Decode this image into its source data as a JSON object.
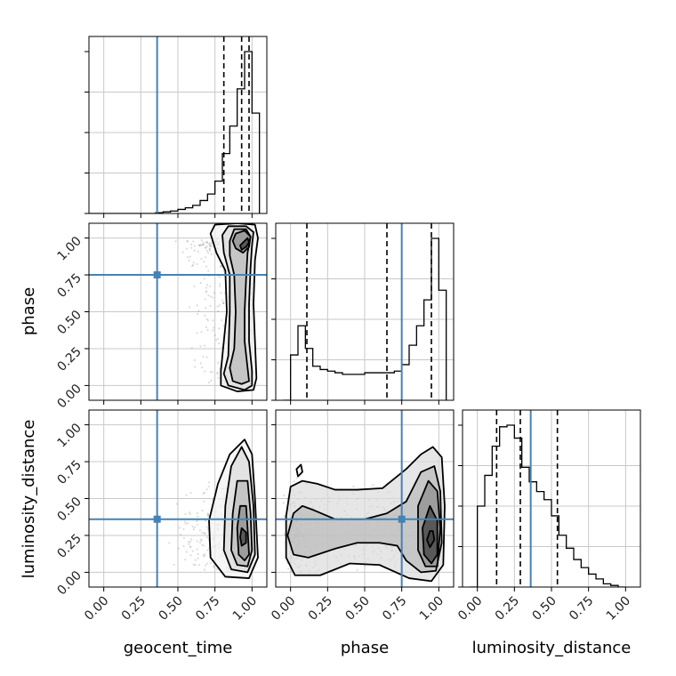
{
  "chart_data": {
    "type": "corner",
    "parameters": [
      "geocent_time",
      "phase",
      "luminosity_distance"
    ],
    "axis_range": [
      -0.1,
      1.1
    ],
    "tick_labels": [
      "0.00",
      "0.25",
      "0.50",
      "0.75",
      "1.00"
    ],
    "tick_values": [
      0,
      0.25,
      0.5,
      0.75,
      1.0
    ],
    "grid": true,
    "truth_color": "#4682b4",
    "truths": {
      "geocent_time": 0.36,
      "phase": 0.75,
      "luminosity_distance": 0.36
    },
    "histograms": {
      "geocent_time": {
        "bin_edges": [
          -0.1,
          -0.05,
          0.0,
          0.05,
          0.1,
          0.15,
          0.2,
          0.25,
          0.3,
          0.35,
          0.4,
          0.45,
          0.5,
          0.55,
          0.6,
          0.65,
          0.7,
          0.75,
          0.8,
          0.85,
          0.9,
          0.95,
          1.0,
          1.05
        ],
        "counts": [
          0,
          0,
          0,
          0,
          0,
          0,
          0,
          0,
          0,
          0.005,
          0.01,
          0.015,
          0.025,
          0.035,
          0.05,
          0.08,
          0.12,
          0.2,
          0.37,
          0.54,
          0.77,
          1.0,
          0.62
        ],
        "quantiles": [
          0.81,
          0.93,
          0.98
        ]
      },
      "phase": {
        "bin_edges": [
          -0.05,
          0.0,
          0.05,
          0.1,
          0.15,
          0.2,
          0.25,
          0.3,
          0.35,
          0.4,
          0.45,
          0.5,
          0.55,
          0.6,
          0.65,
          0.7,
          0.75,
          0.8,
          0.85,
          0.9,
          0.95,
          1.0,
          1.05
        ],
        "counts": [
          0,
          0.28,
          0.46,
          0.32,
          0.21,
          0.19,
          0.18,
          0.17,
          0.16,
          0.16,
          0.16,
          0.17,
          0.17,
          0.17,
          0.17,
          0.18,
          0.22,
          0.34,
          0.46,
          0.62,
          1.0,
          0.68
        ],
        "quantiles": [
          0.11,
          0.65,
          0.95
        ]
      },
      "luminosity_distance": {
        "bin_edges": [
          -0.05,
          0.0,
          0.05,
          0.1,
          0.15,
          0.2,
          0.25,
          0.3,
          0.35,
          0.4,
          0.45,
          0.5,
          0.55,
          0.6,
          0.65,
          0.7,
          0.75,
          0.8,
          0.85,
          0.9,
          0.95,
          1.0
        ],
        "counts": [
          0,
          0.5,
          0.69,
          0.87,
          0.99,
          1.0,
          0.92,
          0.74,
          0.65,
          0.59,
          0.54,
          0.44,
          0.32,
          0.24,
          0.17,
          0.12,
          0.08,
          0.05,
          0.02,
          0.01,
          0
        ],
        "quantiles": [
          0.13,
          0.29,
          0.54
        ]
      }
    },
    "scatter_2d": {
      "phase_vs_geocent_time": {
        "x": "geocent_time",
        "y": "phase",
        "contours": [
          [
            [
              0.97,
              1.0
            ],
            [
              0.95,
              0.98
            ],
            [
              0.92,
              0.95
            ],
            [
              0.93,
              0.92
            ],
            [
              0.96,
              0.94
            ],
            [
              0.98,
              0.97
            ]
          ],
          [
            [
              0.89,
              1.03
            ],
            [
              0.87,
              0.98
            ],
            [
              0.89,
              0.93
            ],
            [
              0.94,
              0.9
            ],
            [
              0.98,
              0.94
            ],
            [
              0.99,
              1.01
            ],
            [
              0.95,
              1.05
            ]
          ],
          [
            [
              0.88,
              0.25
            ],
            [
              0.85,
              0.12
            ],
            [
              0.87,
              0.03
            ],
            [
              0.93,
              0.01
            ],
            [
              0.98,
              0.03
            ],
            [
              0.97,
              0.12
            ],
            [
              0.95,
              0.3
            ],
            [
              0.95,
              0.5
            ],
            [
              0.96,
              0.72
            ],
            [
              0.97,
              0.9
            ],
            [
              0.99,
              1.01
            ],
            [
              0.96,
              1.06
            ],
            [
              0.88,
              1.06
            ],
            [
              0.85,
              0.98
            ],
            [
              0.85,
              0.88
            ],
            [
              0.88,
              0.75
            ],
            [
              0.89,
              0.5
            ]
          ],
          [
            [
              0.84,
              0.2
            ],
            [
              0.81,
              0.08
            ],
            [
              0.84,
              0.0
            ],
            [
              0.95,
              -0.03
            ],
            [
              1.0,
              0.0
            ],
            [
              1.0,
              0.1
            ],
            [
              0.98,
              0.3
            ],
            [
              0.98,
              0.55
            ],
            [
              0.99,
              0.8
            ],
            [
              1.0,
              0.95
            ],
            [
              1.01,
              1.04
            ],
            [
              0.96,
              1.08
            ],
            [
              0.84,
              1.08
            ],
            [
              0.8,
              1.02
            ],
            [
              0.81,
              0.9
            ],
            [
              0.85,
              0.75
            ],
            [
              0.85,
              0.5
            ]
          ],
          [
            [
              0.79,
              0.1
            ],
            [
              0.79,
              0.0
            ],
            [
              0.9,
              -0.04
            ],
            [
              1.01,
              -0.03
            ],
            [
              1.03,
              0.05
            ],
            [
              1.02,
              0.3
            ],
            [
              1.01,
              0.55
            ],
            [
              1.02,
              0.85
            ],
            [
              1.04,
              1.0
            ],
            [
              1.02,
              1.09
            ],
            [
              0.9,
              1.1
            ],
            [
              0.75,
              1.09
            ],
            [
              0.72,
              1.03
            ],
            [
              0.76,
              0.9
            ],
            [
              0.82,
              0.78
            ],
            [
              0.83,
              0.5
            ],
            [
              0.81,
              0.3
            ]
          ]
        ]
      },
      "luminosity_distance_vs_geocent_time": {
        "x": "geocent_time",
        "y": "luminosity_distance",
        "contours": [
          [
            [
              0.93,
              0.3
            ],
            [
              0.92,
              0.24
            ],
            [
              0.93,
              0.18
            ],
            [
              0.96,
              0.2
            ],
            [
              0.96,
              0.27
            ]
          ],
          [
            [
              0.92,
              0.45
            ],
            [
              0.9,
              0.3
            ],
            [
              0.91,
              0.12
            ],
            [
              0.95,
              0.08
            ],
            [
              0.98,
              0.12
            ],
            [
              0.97,
              0.3
            ],
            [
              0.96,
              0.45
            ]
          ],
          [
            [
              0.9,
              0.62
            ],
            [
              0.87,
              0.4
            ],
            [
              0.86,
              0.15
            ],
            [
              0.9,
              0.05
            ],
            [
              0.97,
              0.04
            ],
            [
              1.0,
              0.15
            ],
            [
              0.99,
              0.4
            ],
            [
              0.97,
              0.62
            ]
          ],
          [
            [
              0.93,
              0.85
            ],
            [
              0.86,
              0.72
            ],
            [
              0.82,
              0.45
            ],
            [
              0.81,
              0.15
            ],
            [
              0.86,
              0.02
            ],
            [
              0.97,
              0.0
            ],
            [
              1.02,
              0.12
            ],
            [
              1.01,
              0.45
            ],
            [
              0.98,
              0.75
            ]
          ],
          [
            [
              0.95,
              0.9
            ],
            [
              0.85,
              0.8
            ],
            [
              0.77,
              0.6
            ],
            [
              0.71,
              0.35
            ],
            [
              0.72,
              0.1
            ],
            [
              0.82,
              -0.03
            ],
            [
              0.98,
              -0.04
            ],
            [
              1.04,
              0.1
            ],
            [
              1.02,
              0.5
            ],
            [
              1.0,
              0.8
            ]
          ]
        ]
      },
      "luminosity_distance_vs_phase": {
        "x": "phase",
        "y": "luminosity_distance",
        "contours": [
          [
            [
              0.94,
              0.28
            ],
            [
              0.92,
              0.22
            ],
            [
              0.94,
              0.17
            ],
            [
              0.97,
              0.22
            ],
            [
              0.96,
              0.28
            ]
          ],
          [
            [
              0.94,
              0.45
            ],
            [
              0.89,
              0.3
            ],
            [
              0.9,
              0.12
            ],
            [
              0.95,
              0.06
            ],
            [
              0.99,
              0.12
            ],
            [
              0.99,
              0.35
            ]
          ],
          [
            [
              0.93,
              0.62
            ],
            [
              0.86,
              0.45
            ],
            [
              0.86,
              0.15
            ],
            [
              0.91,
              0.04
            ],
            [
              0.99,
              0.04
            ],
            [
              1.01,
              0.3
            ],
            [
              0.99,
              0.55
            ]
          ],
          [
            [
              0.08,
              0.45
            ],
            [
              0.02,
              0.4
            ],
            [
              -0.02,
              0.25
            ],
            [
              0.02,
              0.12
            ],
            [
              0.12,
              0.1
            ],
            [
              0.3,
              0.16
            ],
            [
              0.45,
              0.2
            ],
            [
              0.6,
              0.2
            ],
            [
              0.72,
              0.18
            ],
            [
              0.78,
              0.08
            ],
            [
              0.88,
              0.0
            ],
            [
              0.98,
              0.01
            ],
            [
              1.02,
              0.2
            ],
            [
              1.01,
              0.55
            ],
            [
              0.97,
              0.72
            ],
            [
              0.88,
              0.68
            ],
            [
              0.78,
              0.48
            ],
            [
              0.65,
              0.4
            ],
            [
              0.5,
              0.36
            ],
            [
              0.3,
              0.36
            ],
            [
              0.16,
              0.42
            ]
          ],
          [
            [
              0.08,
              0.62
            ],
            [
              0.0,
              0.58
            ],
            [
              -0.03,
              0.38
            ],
            [
              -0.03,
              0.1
            ],
            [
              0.03,
              -0.02
            ],
            [
              0.2,
              -0.02
            ],
            [
              0.4,
              0.06
            ],
            [
              0.6,
              0.05
            ],
            [
              0.8,
              -0.04
            ],
            [
              0.95,
              -0.06
            ],
            [
              1.03,
              0.05
            ],
            [
              1.04,
              0.45
            ],
            [
              1.02,
              0.78
            ],
            [
              0.96,
              0.85
            ],
            [
              0.88,
              0.8
            ],
            [
              0.78,
              0.7
            ],
            [
              0.62,
              0.57
            ],
            [
              0.45,
              0.56
            ],
            [
              0.3,
              0.56
            ],
            [
              0.18,
              0.6
            ]
          ],
          [
            [
              0.07,
              0.73
            ],
            [
              0.04,
              0.7
            ],
            [
              0.05,
              0.65
            ],
            [
              0.08,
              0.68
            ]
          ]
        ]
      }
    }
  }
}
